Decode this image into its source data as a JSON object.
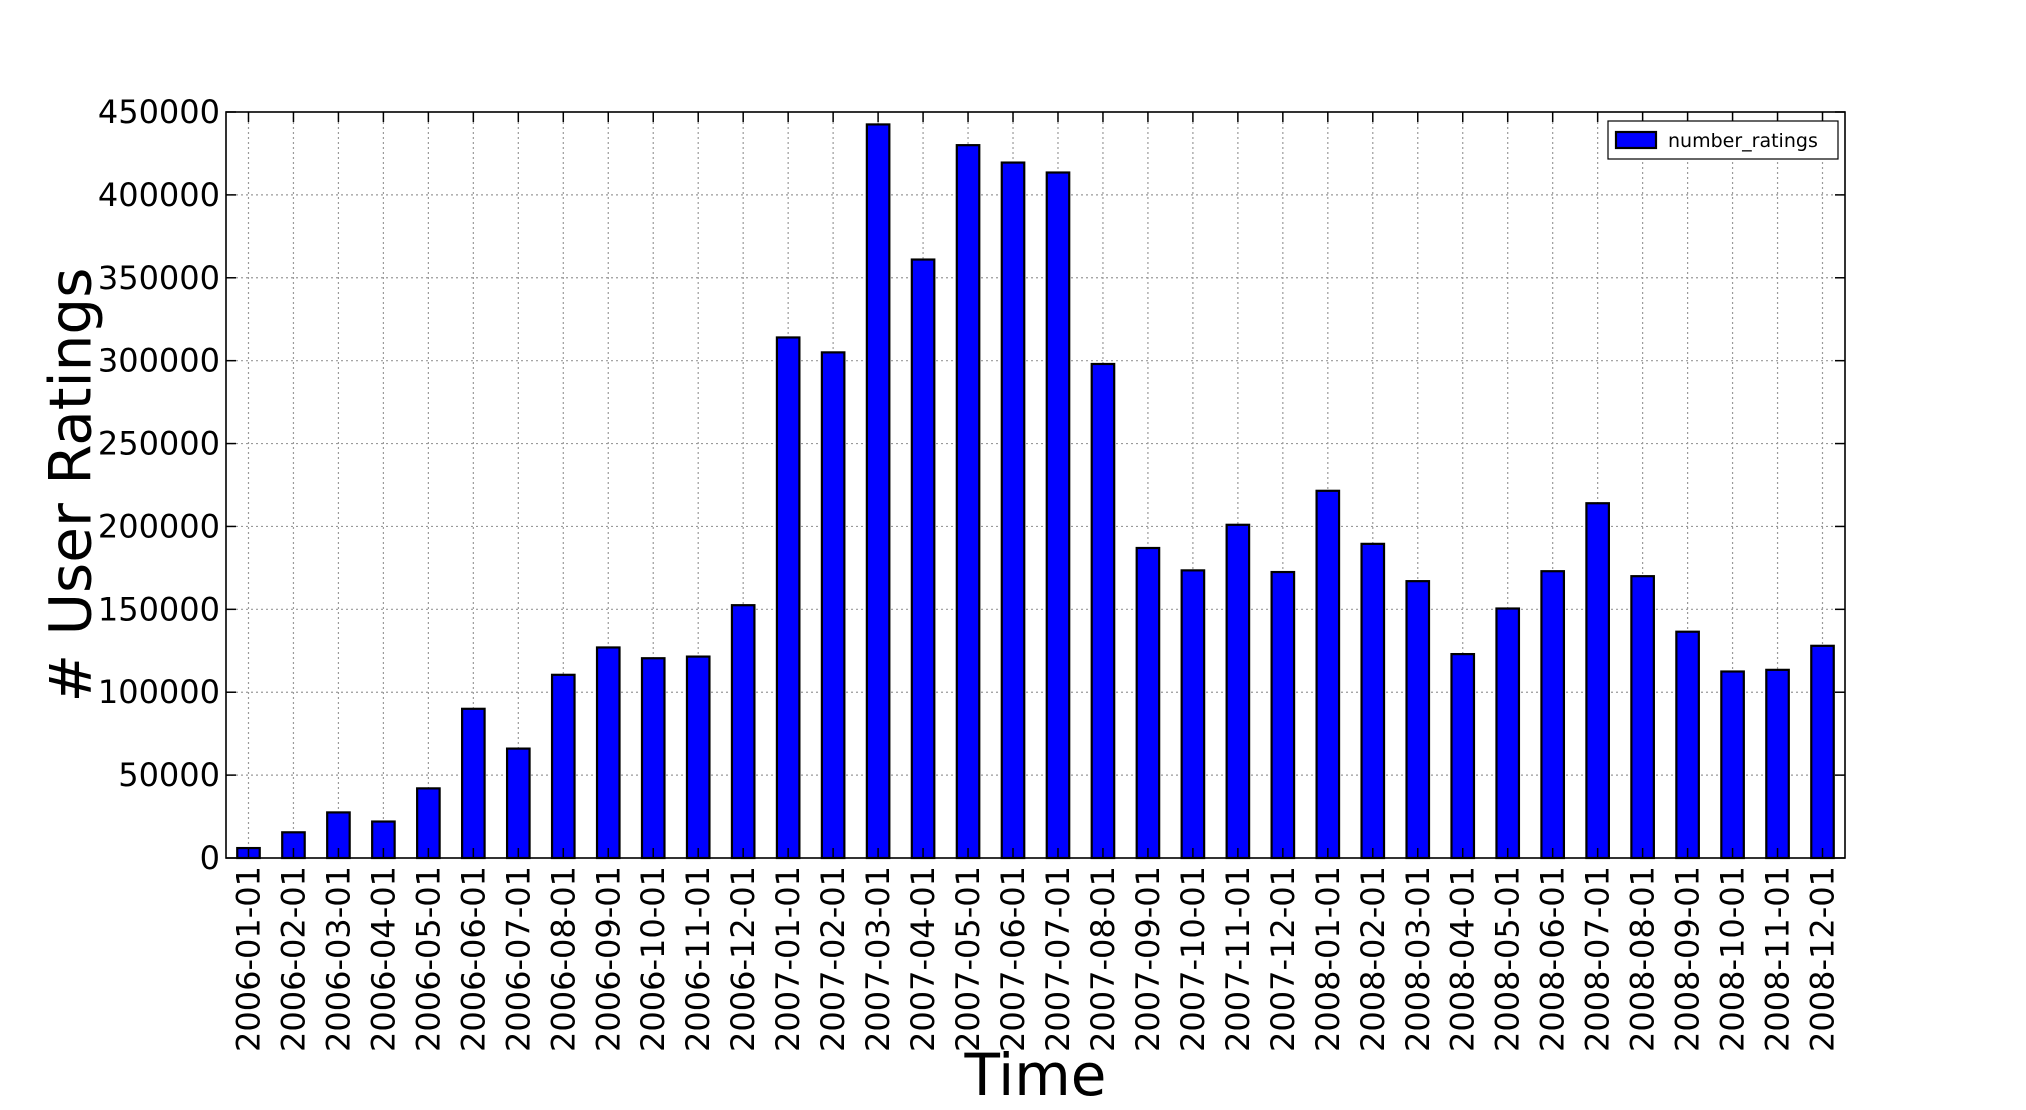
{
  "chart_data": {
    "type": "bar",
    "xlabel": "Time",
    "ylabel": "# User Ratings",
    "ylim": [
      0,
      450000
    ],
    "yticks": [
      0,
      50000,
      100000,
      150000,
      200000,
      250000,
      300000,
      350000,
      400000,
      450000
    ],
    "ytick_labels": [
      "0",
      "50000",
      "100000",
      "150000",
      "200000",
      "250000",
      "300000",
      "350000",
      "400000",
      "450000"
    ],
    "grid": true,
    "legend_position": "top-right",
    "bar_color": "#0000ff",
    "categories": [
      "2006-01-01",
      "2006-02-01",
      "2006-03-01",
      "2006-04-01",
      "2006-05-01",
      "2006-06-01",
      "2006-07-01",
      "2006-08-01",
      "2006-09-01",
      "2006-10-01",
      "2006-11-01",
      "2006-12-01",
      "2007-01-01",
      "2007-02-01",
      "2007-03-01",
      "2007-04-01",
      "2007-05-01",
      "2007-06-01",
      "2007-07-01",
      "2007-08-01",
      "2007-09-01",
      "2007-10-01",
      "2007-11-01",
      "2007-12-01",
      "2008-01-01",
      "2008-02-01",
      "2008-03-01",
      "2008-04-01",
      "2008-05-01",
      "2008-06-01",
      "2008-07-01",
      "2008-08-01",
      "2008-09-01",
      "2008-10-01",
      "2008-11-01",
      "2008-12-01"
    ],
    "series": [
      {
        "name": "number_ratings",
        "values": [
          6000,
          15500,
          27500,
          22000,
          42000,
          90000,
          66000,
          110500,
          127000,
          120500,
          121500,
          152500,
          314000,
          305000,
          442500,
          361000,
          430000,
          419500,
          413500,
          298000,
          187000,
          173500,
          201000,
          172500,
          221500,
          189500,
          167000,
          123000,
          150500,
          173000,
          214000,
          170000,
          136500,
          112500,
          113500,
          128000
        ]
      }
    ]
  }
}
